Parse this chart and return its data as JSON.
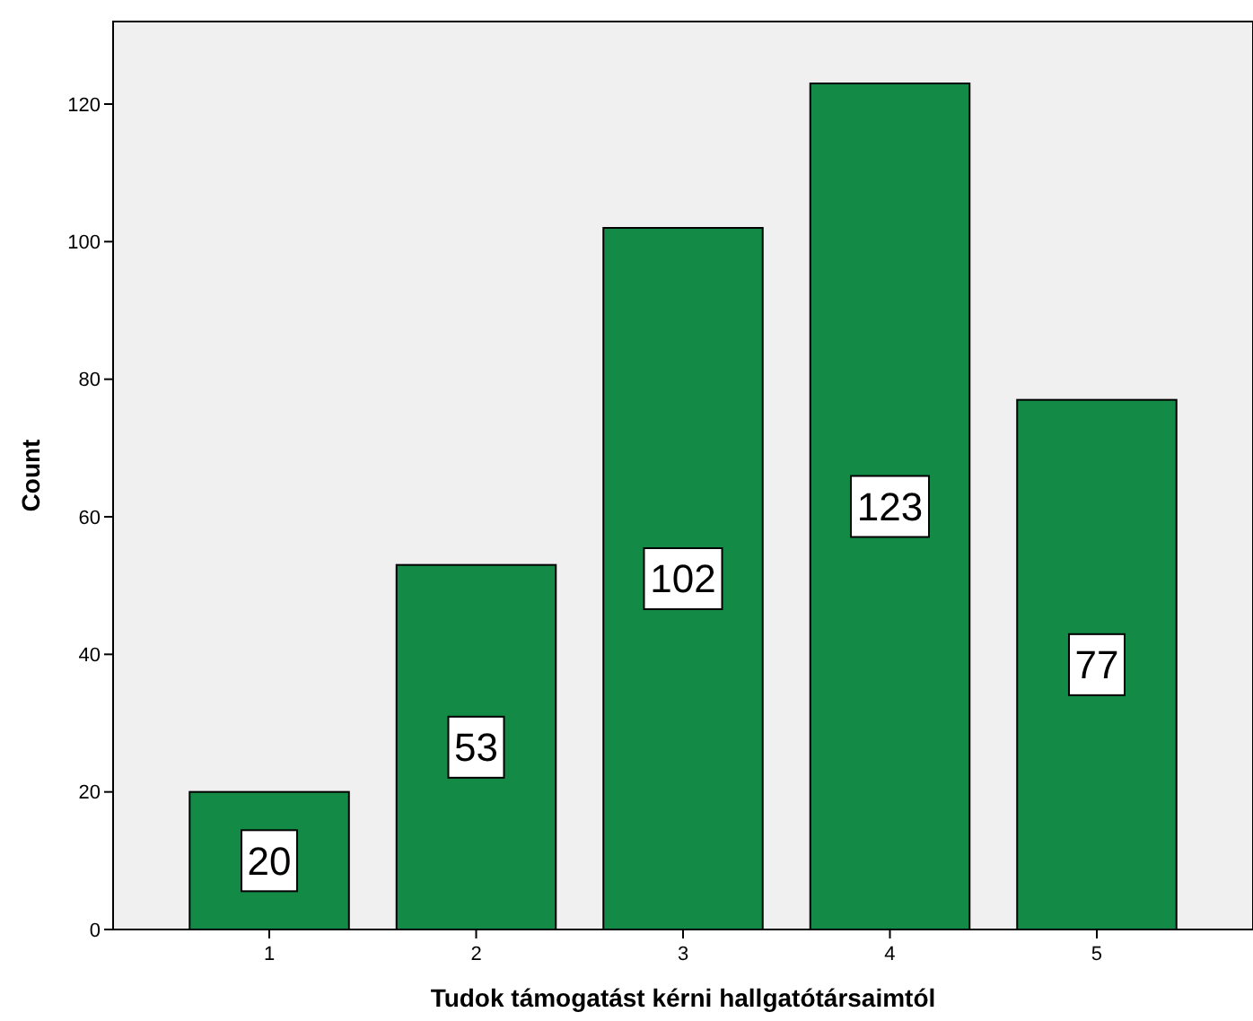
{
  "chart_data": {
    "type": "bar",
    "xlabel": "Tudok támogatást kérni hallgatótársaimtól",
    "ylabel": "Count",
    "categories": [
      "1",
      "2",
      "3",
      "4",
      "5"
    ],
    "values": [
      20,
      53,
      102,
      123,
      77
    ],
    "color": "#138a45",
    "ylim": [
      0,
      132
    ],
    "yticks": [
      0,
      20,
      40,
      60,
      80,
      100,
      120
    ],
    "data_labels": true,
    "grid": false
  }
}
